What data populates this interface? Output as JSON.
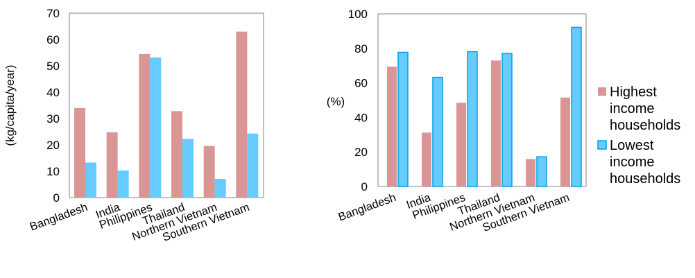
{
  "colors": {
    "highest": "#d99694",
    "lowest": "#66ccff",
    "lowest_stroke": "#00a0e3"
  },
  "legend": {
    "placement": "right",
    "entries": [
      {
        "lines": [
          "Highest",
          "income",
          "households"
        ]
      },
      {
        "lines": [
          "Lowest",
          "income",
          "households"
        ]
      }
    ]
  },
  "chart_data": [
    {
      "type": "bar",
      "ylabel": "(kg/capita/year)",
      "ylim": [
        0,
        70
      ],
      "yticks": [
        0,
        10,
        20,
        30,
        40,
        50,
        60,
        70
      ],
      "categories": [
        "Bangladesh",
        "India",
        "Philippines",
        "Thailand",
        "Northern Vietnam",
        "Southern Vietnam"
      ],
      "series": [
        {
          "key": "highest",
          "values": [
            34,
            24.8,
            54.5,
            32.8,
            19.6,
            63
          ]
        },
        {
          "key": "lowest",
          "values": [
            13.3,
            10.3,
            53.2,
            22.3,
            7.1,
            24.3
          ]
        }
      ],
      "grid": false
    },
    {
      "type": "bar",
      "ylabel": "(%)",
      "ylim": [
        0,
        100
      ],
      "yticks": [
        0,
        20,
        40,
        60,
        80,
        100
      ],
      "categories": [
        "Bangladesh",
        "India",
        "Philippines",
        "Thailand",
        "Northern Vietnam",
        "Southern Vietnam"
      ],
      "series": [
        {
          "name": "Highest income households",
          "key": "highest",
          "values": [
            69.4,
            31.2,
            48.5,
            73,
            15.9,
            51.5
          ]
        },
        {
          "name": "Lowest income households",
          "key": "lowest",
          "values": [
            77.7,
            63.2,
            78.1,
            77.1,
            17.2,
            92.2
          ]
        }
      ],
      "grid": false
    }
  ]
}
